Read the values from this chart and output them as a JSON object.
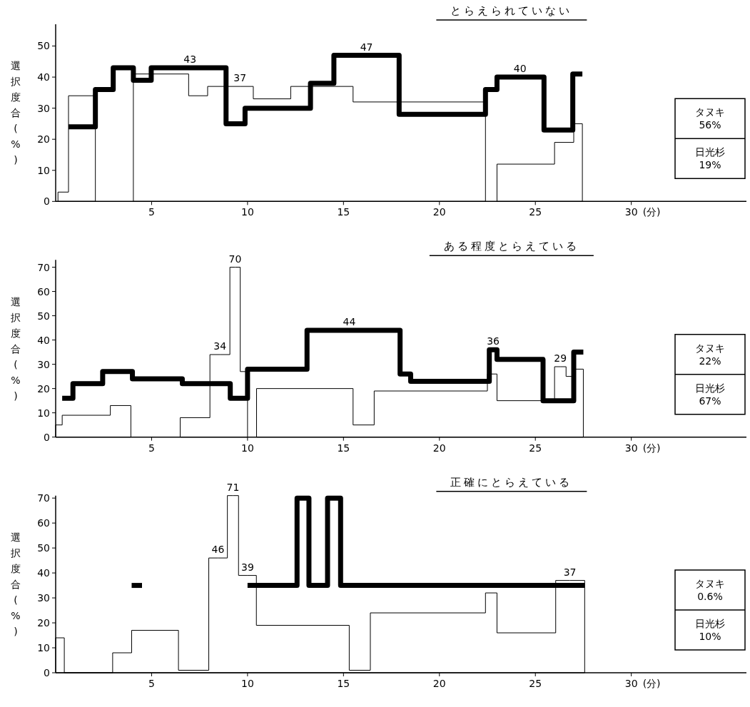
{
  "chart_data": [
    {
      "type": "step",
      "title": "とらえられていない",
      "ylabel": "選択度合(%)",
      "xlabel": "(分)",
      "xlim": [
        0,
        36
      ],
      "ylim": [
        0,
        57
      ],
      "xticks": [
        5,
        10,
        15,
        20,
        25,
        30
      ],
      "yticks": [
        0,
        10,
        20,
        30,
        40,
        50
      ],
      "annotations": [
        "タヌキ\n56%",
        "日光杉\n19%"
      ],
      "series": [
        {
          "type": "area",
          "color": "#ffffff",
          "x": [
            0.12,
            0.67,
            2.07
          ],
          "values": [
            3,
            34,
            34
          ]
        },
        {
          "type": "area",
          "color": "#ffffff",
          "x": [
            4.05,
            6.93,
            7.92,
            9.6,
            10.3,
            12.25,
            15.5,
            22.4
          ],
          "values": [
            41,
            34,
            37,
            37,
            33,
            37,
            32,
            32
          ],
          "value_labels": [
            null,
            null,
            null,
            "37",
            null,
            null,
            null,
            null
          ]
        },
        {
          "type": "area",
          "color": "#ffffff",
          "x": [
            23.0,
            26.0,
            27.0,
            27.45
          ],
          "values": [
            12,
            19,
            25,
            25
          ]
        },
        {
          "color": "#000000",
          "x": [
            0.67,
            2.07,
            3.0,
            4.05,
            4.98,
            7.0,
            8.88,
            9.87,
            13.28,
            14.5,
            16.2,
            17.9,
            22.4,
            23.0,
            24.2,
            25.45,
            26.95,
            27.45
          ],
          "values": [
            24,
            36,
            43,
            39,
            43,
            43,
            25,
            30,
            38,
            47,
            47,
            28,
            36,
            40,
            40,
            23,
            41,
            41
          ],
          "value_labels": [
            null,
            null,
            null,
            null,
            null,
            "43",
            null,
            null,
            null,
            null,
            "47",
            null,
            null,
            null,
            "40",
            null,
            null,
            null
          ]
        }
      ]
    },
    {
      "type": "step",
      "title": "ある程度とらえている",
      "ylabel": "選択度合(%)",
      "xlabel": "(分)",
      "xlim": [
        0,
        36
      ],
      "ylim": [
        0,
        73
      ],
      "xticks": [
        5,
        10,
        15,
        20,
        25,
        30
      ],
      "yticks": [
        0,
        10,
        20,
        30,
        40,
        50,
        60,
        70
      ],
      "annotations": [
        "タヌキ\n22%",
        "日光杉\n67%"
      ],
      "series": [
        {
          "type": "area",
          "color": "#ffffff",
          "x": [
            0,
            0.34,
            2.85,
            3.92
          ],
          "values": [
            5,
            9,
            13,
            13
          ]
        },
        {
          "type": "area",
          "color": "#ffffff",
          "x": [
            6.49,
            8.04,
            8.56,
            9.08,
            9.35,
            9.62,
            10.0
          ],
          "values": [
            8,
            34,
            34,
            70,
            70,
            27,
            27
          ],
          "value_labels": [
            null,
            null,
            "34",
            null,
            "70",
            null,
            null
          ]
        },
        {
          "type": "area",
          "color": "#ffffff",
          "x": [
            10.47,
            15.5,
            16.6,
            22.5,
            23.0,
            26.0,
            26.3,
            26.6,
            27.0,
            27.5
          ],
          "values": [
            20,
            5,
            19,
            26,
            15,
            29,
            29,
            25,
            28,
            28
          ],
          "value_labels": [
            null,
            null,
            null,
            null,
            null,
            null,
            "29",
            null,
            null,
            null
          ]
        },
        {
          "color": "#000000",
          "x": [
            0.34,
            0.9,
            2.45,
            4.0,
            6.6,
            9.1,
            10.0,
            13.1,
            15.3,
            17.95,
            18.5,
            22.6,
            22.8,
            23.0,
            25.4,
            27.0,
            27.5
          ],
          "values": [
            16,
            22,
            27,
            24,
            22,
            16,
            28,
            44,
            44,
            26,
            23,
            36,
            36,
            32,
            15,
            35,
            35
          ],
          "value_labels": [
            null,
            null,
            null,
            null,
            null,
            null,
            null,
            null,
            "44",
            null,
            null,
            null,
            "36",
            null,
            null,
            null,
            null
          ]
        }
      ]
    },
    {
      "type": "step",
      "title": "正確にとらえている",
      "ylabel": "選択度合(%)",
      "xlabel": "(分)",
      "xlim": [
        0,
        36
      ],
      "ylim": [
        0,
        71
      ],
      "xticks": [
        5,
        10,
        15,
        20,
        25,
        30
      ],
      "yticks": [
        0,
        10,
        20,
        30,
        40,
        50,
        60,
        70
      ],
      "annotations": [
        "タヌキ\n0.6%",
        "日光杉\n10%"
      ],
      "series": [
        {
          "type": "area",
          "color": "#ffffff",
          "x": [
            0,
            0.45,
            2.97,
            3.96,
            6.4,
            7.98,
            8.46,
            8.95,
            9.24,
            9.53,
            10.0,
            10.46,
            15.3,
            16.4,
            22.4,
            23.0,
            26.06,
            26.8,
            27.57
          ],
          "values": [
            14,
            0,
            8,
            17,
            1,
            46,
            46,
            71,
            71,
            39,
            39,
            19,
            1,
            24,
            32,
            16,
            37,
            37,
            37
          ],
          "value_labels": [
            null,
            null,
            null,
            null,
            null,
            null,
            "46",
            null,
            "71",
            null,
            "39",
            null,
            null,
            null,
            null,
            null,
            null,
            "37",
            null
          ]
        },
        {
          "color": "#000000",
          "x": [
            3.96,
            4.5
          ],
          "values": [
            35,
            35
          ]
        },
        {
          "color": "#000000",
          "x": [
            10.0,
            12.58,
            13.2,
            14.17,
            14.85,
            27.57
          ],
          "values": [
            35,
            70,
            35,
            70,
            35,
            35
          ]
        }
      ]
    }
  ]
}
